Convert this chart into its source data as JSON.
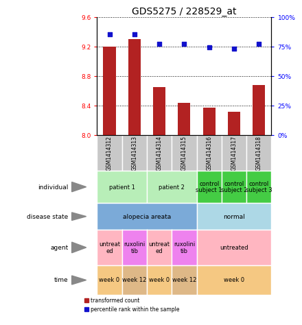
{
  "title": "GDS5275 / 228529_at",
  "samples": [
    "GSM1414312",
    "GSM1414313",
    "GSM1414314",
    "GSM1414315",
    "GSM1414316",
    "GSM1414317",
    "GSM1414318"
  ],
  "bar_values": [
    9.2,
    9.3,
    8.65,
    8.43,
    8.37,
    8.31,
    8.68
  ],
  "dot_values": [
    85,
    85,
    77,
    77,
    74,
    73,
    77
  ],
  "ylim_left": [
    8.0,
    9.6
  ],
  "ylim_right": [
    0,
    100
  ],
  "yticks_left": [
    8.0,
    8.4,
    8.8,
    9.2,
    9.6
  ],
  "yticks_right": [
    0,
    25,
    50,
    75,
    100
  ],
  "bar_color": "#B22222",
  "dot_color": "#1111CC",
  "title_fontsize": 10,
  "tick_fontsize": 6.5,
  "gsm_color": "#C8C8C8",
  "individual_patient_color": "#B8EEB8",
  "individual_control_color": "#44CC44",
  "disease_alopecia_color": "#7BAAD8",
  "disease_normal_color": "#ADD8E6",
  "agent_untreated_color": "#FFB6C1",
  "agent_ruxolitinib_color": "#EE82EE",
  "time_week0_color": "#F5C882",
  "time_week12_color": "#DEB887",
  "legend_bar_label": "transformed count",
  "legend_dot_label": "percentile rank within the sample",
  "row_labels": [
    "individual",
    "disease state",
    "agent",
    "time"
  ],
  "ind_groups": [
    [
      0,
      1,
      "patient 1",
      "#B8EEB8"
    ],
    [
      2,
      3,
      "patient 2",
      "#B8EEB8"
    ],
    [
      4,
      4,
      "control\nsubject 1",
      "#44CC44"
    ],
    [
      5,
      5,
      "control\nsubject 2",
      "#44CC44"
    ],
    [
      6,
      6,
      "control\nsubject 3",
      "#44CC44"
    ]
  ],
  "disease_groups": [
    [
      0,
      3,
      "alopecia areata",
      "#7BAAD8"
    ],
    [
      4,
      6,
      "normal",
      "#ADD8E6"
    ]
  ],
  "agent_groups": [
    [
      0,
      0,
      "untreat\ned",
      "#FFB6C1"
    ],
    [
      1,
      1,
      "ruxolini\ntib",
      "#EE82EE"
    ],
    [
      2,
      2,
      "untreat\ned",
      "#FFB6C1"
    ],
    [
      3,
      3,
      "ruxolini\ntib",
      "#EE82EE"
    ],
    [
      4,
      6,
      "untreated",
      "#FFB6C1"
    ]
  ],
  "time_groups": [
    [
      0,
      0,
      "week 0",
      "#F5C882"
    ],
    [
      1,
      1,
      "week 12",
      "#DEB887"
    ],
    [
      2,
      2,
      "week 0",
      "#F5C882"
    ],
    [
      3,
      3,
      "week 12",
      "#DEB887"
    ],
    [
      4,
      6,
      "week 0",
      "#F5C882"
    ]
  ]
}
